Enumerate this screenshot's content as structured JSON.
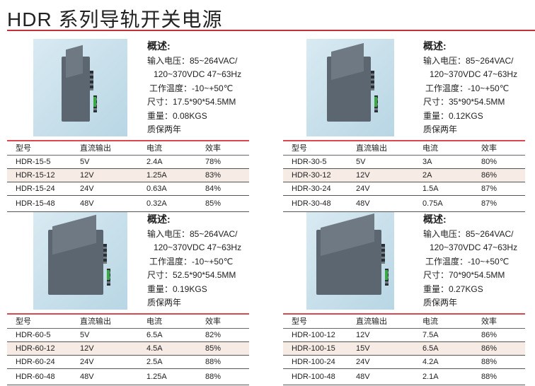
{
  "title": "HDR 系列导轨开关电源",
  "colors": {
    "accent": "#c0313a",
    "row_tint": "#f7ebe5"
  },
  "table_headers": [
    "型号",
    "直流输出",
    "电流",
    "效率"
  ],
  "products": [
    {
      "heading": "概述:",
      "input1": "输入电压：85~264VAC/",
      "input2": "120~370VDC 47~63Hz",
      "temp": "工作温度：-10~+50℃",
      "size": "尺寸：17.5*90*54.5MM",
      "weight": "重量：0.08KGS",
      "warranty": "质保两年",
      "rows": [
        [
          "HDR-15-5",
          "5V",
          "2.4A",
          "78%"
        ],
        [
          "HDR-15-12",
          "12V",
          "1.25A",
          "83%"
        ],
        [
          "HDR-15-24",
          "24V",
          "0.63A",
          "84%"
        ],
        [
          "HDR-15-48",
          "48V",
          "0.32A",
          "85%"
        ]
      ]
    },
    {
      "heading": "概述:",
      "input1": "输入电压：85~264VAC/",
      "input2": "120~370VDC 47~63Hz",
      "temp": "工作温度：-10~+50℃",
      "size": "尺寸：35*90*54.5MM",
      "weight": "重量：0.12KGS",
      "warranty": "质保两年",
      "rows": [
        [
          "HDR-30-5",
          "5V",
          "3A",
          "80%"
        ],
        [
          "HDR-30-12",
          "12V",
          "2A",
          "86%"
        ],
        [
          "HDR-30-24",
          "24V",
          "1.5A",
          "87%"
        ],
        [
          "HDR-30-48",
          "48V",
          "0.75A",
          "87%"
        ]
      ]
    },
    {
      "heading": "概述:",
      "input1": "输入电压：85~264VAC/",
      "input2": "120~370VDC 47~63Hz",
      "temp": "工作温度：-10~+50℃",
      "size": "尺寸：52.5*90*54.5MM",
      "weight": "重量：0.19KGS",
      "warranty": "质保两年",
      "rows": [
        [
          "HDR-60-5",
          "5V",
          "6.5A",
          "82%"
        ],
        [
          "HDR-60-12",
          "12V",
          "4.5A",
          "85%"
        ],
        [
          "HDR-60-24",
          "24V",
          "2.5A",
          "88%"
        ],
        [
          "HDR-60-48",
          "48V",
          "1.25A",
          "88%"
        ]
      ]
    },
    {
      "heading": "概述:",
      "input1": "输入电压：85~264VAC/",
      "input2": "120~370VDC 47~63Hz",
      "temp": "工作温度：-10~+50℃",
      "size": "尺寸：70*90*54.5MM",
      "weight": "重量：0.27KGS",
      "warranty": "质保两年",
      "rows": [
        [
          "HDR-100-12",
          "12V",
          "7.5A",
          "86%"
        ],
        [
          "HDR-100-15",
          "15V",
          "6.5A",
          "86%"
        ],
        [
          "HDR-100-24",
          "24V",
          "4.2A",
          "88%"
        ],
        [
          "HDR-100-48",
          "48V",
          "2.1A",
          "88%"
        ]
      ]
    }
  ]
}
